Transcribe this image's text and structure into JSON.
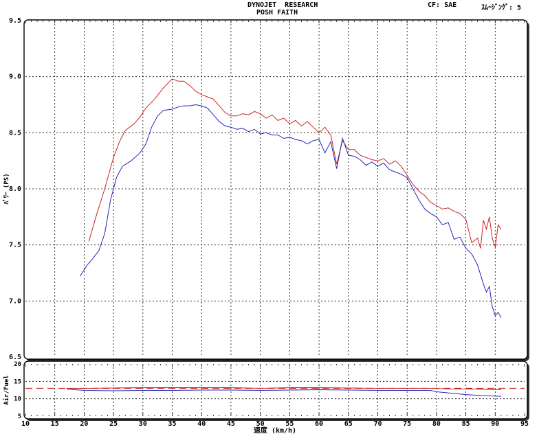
{
  "header": {
    "title_line1": "DYNOJET  RESEARCH",
    "title_line2": "POSH FAITH",
    "cf": "CF: SAE",
    "smoothing": "ｽﾑｰｼﾞﾝｸﾞ: 5"
  },
  "chart_data": [
    {
      "type": "line",
      "ylabel": "ﾊﾟﾜｰ (PS)",
      "xlabel": "",
      "xlim": [
        10,
        95
      ],
      "ylim": [
        6.5,
        9.5
      ],
      "x_ticks": [
        "10",
        "15",
        "20",
        "25",
        "30",
        "35",
        "40",
        "45",
        "50",
        "55",
        "60",
        "65",
        "70",
        "75",
        "80",
        "85",
        "90",
        "95"
      ],
      "y_ticks": [
        "6.5",
        "7.0",
        "7.5",
        "8.0",
        "8.5",
        "9.0",
        "9.5"
      ],
      "grid": true,
      "series": [
        {
          "color": "#cc2222",
          "points": [
            [
              20.8,
              7.53
            ],
            [
              22,
              7.75
            ],
            [
              23.5,
              8.0
            ],
            [
              25,
              8.28
            ],
            [
              26,
              8.42
            ],
            [
              27,
              8.52
            ],
            [
              28.5,
              8.58
            ],
            [
              29.5,
              8.64
            ],
            [
              30.5,
              8.72
            ],
            [
              32,
              8.8
            ],
            [
              33.5,
              8.9
            ],
            [
              35,
              8.98
            ],
            [
              36,
              8.96
            ],
            [
              37,
              8.96
            ],
            [
              38,
              8.92
            ],
            [
              39,
              8.87
            ],
            [
              40,
              8.84
            ],
            [
              41,
              8.82
            ],
            [
              42,
              8.8
            ],
            [
              43,
              8.74
            ],
            [
              44,
              8.68
            ],
            [
              45,
              8.65
            ],
            [
              46,
              8.65
            ],
            [
              47,
              8.67
            ],
            [
              48,
              8.66
            ],
            [
              49,
              8.69
            ],
            [
              50,
              8.67
            ],
            [
              51,
              8.63
            ],
            [
              52,
              8.66
            ],
            [
              53,
              8.61
            ],
            [
              54,
              8.63
            ],
            [
              55,
              8.58
            ],
            [
              56,
              8.61
            ],
            [
              57,
              8.56
            ],
            [
              58,
              8.6
            ],
            [
              59,
              8.55
            ],
            [
              60,
              8.5
            ],
            [
              61,
              8.55
            ],
            [
              62,
              8.48
            ],
            [
              63,
              8.22
            ],
            [
              64,
              8.43
            ],
            [
              65,
              8.35
            ],
            [
              66,
              8.35
            ],
            [
              67,
              8.3
            ],
            [
              68,
              8.28
            ],
            [
              69,
              8.26
            ],
            [
              70,
              8.25
            ],
            [
              71,
              8.27
            ],
            [
              72,
              8.22
            ],
            [
              73,
              8.25
            ],
            [
              74,
              8.2
            ],
            [
              75,
              8.12
            ],
            [
              76,
              8.04
            ],
            [
              77,
              7.98
            ],
            [
              78,
              7.94
            ],
            [
              79,
              7.88
            ],
            [
              80,
              7.85
            ],
            [
              81,
              7.82
            ],
            [
              82,
              7.83
            ],
            [
              83,
              7.8
            ],
            [
              84,
              7.78
            ],
            [
              85,
              7.73
            ],
            [
              86,
              7.52
            ],
            [
              87,
              7.56
            ],
            [
              87.5,
              7.47
            ],
            [
              88,
              7.72
            ],
            [
              88.5,
              7.64
            ],
            [
              89,
              7.75
            ],
            [
              89.5,
              7.56
            ],
            [
              90,
              7.48
            ],
            [
              90.5,
              7.68
            ],
            [
              91,
              7.64
            ]
          ]
        },
        {
          "color": "#2222bb",
          "points": [
            [
              19.3,
              7.22
            ],
            [
              20.5,
              7.32
            ],
            [
              21.5,
              7.38
            ],
            [
              22.5,
              7.45
            ],
            [
              23.5,
              7.6
            ],
            [
              24.5,
              7.9
            ],
            [
              25.5,
              8.1
            ],
            [
              26.5,
              8.2
            ],
            [
              28,
              8.25
            ],
            [
              29.5,
              8.32
            ],
            [
              30.5,
              8.4
            ],
            [
              31.5,
              8.55
            ],
            [
              32.5,
              8.65
            ],
            [
              33.5,
              8.7
            ],
            [
              35,
              8.71
            ],
            [
              36,
              8.73
            ],
            [
              37,
              8.74
            ],
            [
              38,
              8.74
            ],
            [
              39,
              8.75
            ],
            [
              40,
              8.74
            ],
            [
              41,
              8.72
            ],
            [
              42,
              8.66
            ],
            [
              43,
              8.6
            ],
            [
              44,
              8.56
            ],
            [
              45,
              8.55
            ],
            [
              46,
              8.53
            ],
            [
              47,
              8.54
            ],
            [
              48,
              8.51
            ],
            [
              49,
              8.53
            ],
            [
              50,
              8.49
            ],
            [
              51,
              8.5
            ],
            [
              52,
              8.48
            ],
            [
              53,
              8.48
            ],
            [
              54,
              8.45
            ],
            [
              55,
              8.46
            ],
            [
              56,
              8.44
            ],
            [
              57,
              8.43
            ],
            [
              58,
              8.4
            ],
            [
              59,
              8.43
            ],
            [
              60,
              8.44
            ],
            [
              61,
              8.32
            ],
            [
              62,
              8.42
            ],
            [
              63,
              8.18
            ],
            [
              64,
              8.45
            ],
            [
              65,
              8.3
            ],
            [
              66,
              8.29
            ],
            [
              67,
              8.26
            ],
            [
              68,
              8.21
            ],
            [
              69,
              8.24
            ],
            [
              70,
              8.2
            ],
            [
              71,
              8.23
            ],
            [
              72,
              8.17
            ],
            [
              73,
              8.15
            ],
            [
              74,
              8.13
            ],
            [
              75,
              8.1
            ],
            [
              76,
              8.0
            ],
            [
              77,
              7.9
            ],
            [
              78,
              7.82
            ],
            [
              79,
              7.78
            ],
            [
              80,
              7.75
            ],
            [
              81,
              7.68
            ],
            [
              82,
              7.7
            ],
            [
              83,
              7.55
            ],
            [
              84,
              7.57
            ],
            [
              85,
              7.47
            ],
            [
              86,
              7.42
            ],
            [
              87,
              7.32
            ],
            [
              88,
              7.15
            ],
            [
              88.5,
              7.08
            ],
            [
              89,
              7.13
            ],
            [
              89.5,
              6.95
            ],
            [
              90,
              6.87
            ],
            [
              90.5,
              6.9
            ],
            [
              91,
              6.85
            ]
          ]
        }
      ]
    },
    {
      "type": "line",
      "ylabel": "Air/Fuel",
      "xlabel": "速度 (km/h)",
      "xlim": [
        10,
        95
      ],
      "ylim": [
        5,
        20
      ],
      "x_ticks": [
        "10",
        "15",
        "20",
        "25",
        "30",
        "35",
        "40",
        "45",
        "50",
        "55",
        "60",
        "65",
        "70",
        "75",
        "80",
        "85",
        "90",
        "95"
      ],
      "y_ticks": [
        "5",
        "10",
        "15",
        "20"
      ],
      "grid": true,
      "reference_line": {
        "value": 13,
        "color": "#cc2222",
        "style": "dashed"
      },
      "series": [
        {
          "color": "#cc2222",
          "points": [
            [
              17,
              13.0
            ],
            [
              20,
              13.0
            ],
            [
              25,
              13.1
            ],
            [
              30,
              13.2
            ],
            [
              35,
              13.2
            ],
            [
              40,
              13.2
            ],
            [
              45,
              13.2
            ],
            [
              50,
              13.0
            ],
            [
              55,
              13.2
            ],
            [
              60,
              13.2
            ],
            [
              65,
              13.1
            ],
            [
              70,
              13.0
            ],
            [
              75,
              13.0
            ],
            [
              79,
              13.0
            ],
            [
              80,
              13.0
            ],
            [
              82,
              12.8
            ],
            [
              85,
              12.8
            ],
            [
              88,
              12.7
            ],
            [
              91,
              12.6
            ]
          ]
        },
        {
          "color": "#2222bb",
          "points": [
            [
              17,
              12.8
            ],
            [
              20,
              12.4
            ],
            [
              25,
              12.3
            ],
            [
              30,
              12.4
            ],
            [
              35,
              12.4
            ],
            [
              40,
              12.5
            ],
            [
              45,
              12.5
            ],
            [
              50,
              12.4
            ],
            [
              55,
              12.5
            ],
            [
              60,
              12.6
            ],
            [
              65,
              12.5
            ],
            [
              70,
              12.4
            ],
            [
              75,
              12.4
            ],
            [
              79,
              12.4
            ],
            [
              80,
              12.0
            ],
            [
              82,
              11.7
            ],
            [
              85,
              11.2
            ],
            [
              88,
              10.9
            ],
            [
              91,
              10.7
            ]
          ]
        }
      ]
    }
  ]
}
